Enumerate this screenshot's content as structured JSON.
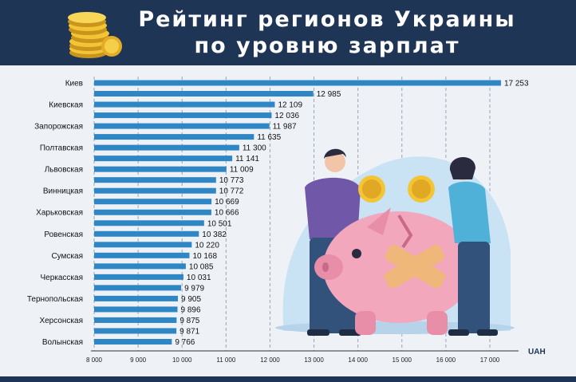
{
  "header": {
    "title_line1": "Рейтинг регионов Украины",
    "title_line2": "по уровню зарплат"
  },
  "icons": {
    "coins": "coin-stack-icon"
  },
  "colors": {
    "header_bg": "#1f3556",
    "bar": "#2f86c4",
    "background": "#eef2f7"
  },
  "chart_data": {
    "type": "bar",
    "orientation": "horizontal",
    "title": "Рейтинг регионов Украины по уровню зарплат",
    "x_unit_label": "UAH",
    "xlim": [
      8000,
      17500
    ],
    "x_ticks": [
      "8 000",
      "9 000",
      "10 000",
      "11 000",
      "12 000",
      "13 000",
      "14 000",
      "15 000",
      "16 000",
      "17 000"
    ],
    "grid": "vertical dashed",
    "bars": [
      {
        "label": "Киев",
        "value": 17253,
        "value_label": "17 253"
      },
      {
        "label": "",
        "value": 12985,
        "value_label": "12 985"
      },
      {
        "label": "Киевская",
        "value": 12109,
        "value_label": "12 109"
      },
      {
        "label": "",
        "value": 12036,
        "value_label": "12 036"
      },
      {
        "label": "Запорожская",
        "value": 11987,
        "value_label": "11 987"
      },
      {
        "label": "",
        "value": 11635,
        "value_label": "11 635"
      },
      {
        "label": "Полтавская",
        "value": 11300,
        "value_label": "11 300"
      },
      {
        "label": "",
        "value": 11141,
        "value_label": "11 141"
      },
      {
        "label": "Львовская",
        "value": 11009,
        "value_label": "11 009"
      },
      {
        "label": "",
        "value": 10773,
        "value_label": "10 773"
      },
      {
        "label": "Винницкая",
        "value": 10772,
        "value_label": "10 772"
      },
      {
        "label": "",
        "value": 10669,
        "value_label": "10 669"
      },
      {
        "label": "Харьковская",
        "value": 10666,
        "value_label": "10 666"
      },
      {
        "label": "",
        "value": 10501,
        "value_label": "10 501"
      },
      {
        "label": "Ровенская",
        "value": 10382,
        "value_label": "10 382"
      },
      {
        "label": "",
        "value": 10220,
        "value_label": "10 220"
      },
      {
        "label": "Сумская",
        "value": 10168,
        "value_label": "10 168"
      },
      {
        "label": "",
        "value": 10085,
        "value_label": "10 085"
      },
      {
        "label": "Черкасская",
        "value": 10031,
        "value_label": "10 031"
      },
      {
        "label": "",
        "value": 9979,
        "value_label": "9 979"
      },
      {
        "label": "Тернопольская",
        "value": 9905,
        "value_label": "9 905"
      },
      {
        "label": "",
        "value": 9896,
        "value_label": "9 896"
      },
      {
        "label": "Херсонская",
        "value": 9875,
        "value_label": "9 875"
      },
      {
        "label": "",
        "value": 9871,
        "value_label": "9 871"
      },
      {
        "label": "Волынская",
        "value": 9766,
        "value_label": "9 766"
      }
    ]
  }
}
